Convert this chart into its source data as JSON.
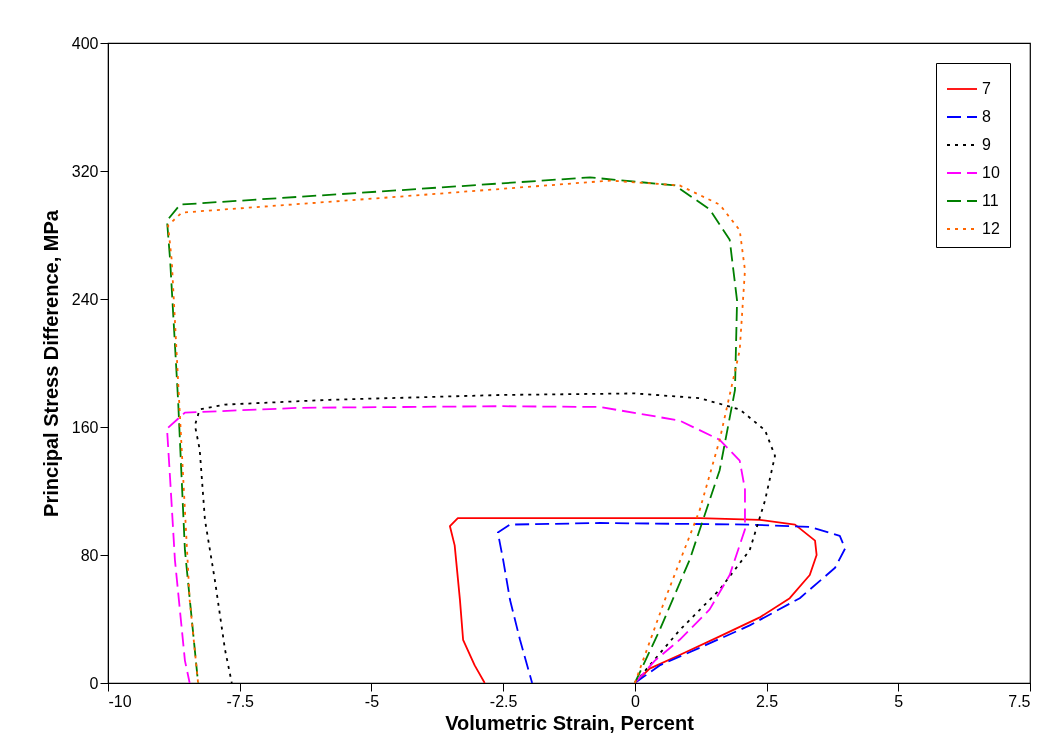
{
  "chart_data": {
    "type": "line",
    "xlabel": "Volumetric Strain, Percent",
    "ylabel": "Principal Stress Difference, MPa",
    "xlim": [
      -10,
      7.5
    ],
    "xticks": [
      -10,
      -7.5,
      -5,
      -2.5,
      0,
      2.5,
      5,
      7.5
    ],
    "ylim": [
      0,
      400
    ],
    "yticks": [
      0,
      80,
      160,
      240,
      320,
      400
    ],
    "grid": false,
    "legend": "top right",
    "marker": "none",
    "series": [
      {
        "name": "7",
        "color": "#ff0000",
        "line_style": "solid",
        "x": [
          0,
          0.28,
          0.85,
          1.6,
          2.37,
          2.94,
          3.32,
          3.45,
          3.42,
          3.04,
          2.37,
          1.23,
          -0.66,
          -3.36,
          -3.51,
          -3.42,
          -3.32,
          -3.26,
          -3.04,
          -2.85
        ],
        "values": [
          0,
          9,
          17.5,
          29,
          41,
          53,
          67.5,
          80,
          89,
          99,
          102,
          103,
          103,
          103,
          98,
          86,
          52,
          27,
          11,
          0
        ]
      },
      {
        "name": "8",
        "color": "#0000ff",
        "line_style": "dashed",
        "x": [
          0,
          0.47,
          1.23,
          2.18,
          3.13,
          3.8,
          3.99,
          3.89,
          3.32,
          2.18,
          -0.66,
          -2.37,
          -2.6,
          -2.5,
          -2.37,
          -2.18,
          -1.95
        ],
        "values": [
          0,
          11,
          22,
          36,
          53,
          72,
          84,
          92,
          97.5,
          99,
          100,
          99,
          94,
          77,
          52,
          27,
          0
        ]
      },
      {
        "name": "9",
        "color": "#000000",
        "line_style": "dotted",
        "x": [
          0,
          0.28,
          0.85,
          1.6,
          2.18,
          2.47,
          2.66,
          2.47,
          1.99,
          1.23,
          0,
          -2.56,
          -5.79,
          -7.78,
          -8.26,
          -8.35,
          -8.26,
          -8.16,
          -7.97,
          -7.78,
          -7.65
        ],
        "values": [
          0,
          11,
          33,
          58,
          83,
          114,
          142,
          158,
          171,
          178,
          181,
          180,
          177,
          174,
          171,
          161,
          146,
          102,
          64,
          21,
          0
        ]
      },
      {
        "name": "10",
        "color": "#ff00ff",
        "line_style": "dashed",
        "x": [
          0,
          0.38,
          0.85,
          1.42,
          1.8,
          2.09,
          2.09,
          1.99,
          1.61,
          0.85,
          -0.66,
          -2.56,
          -6.36,
          -8.54,
          -8.88,
          -8.82,
          -8.73,
          -8.54,
          -8.45
        ],
        "values": [
          0,
          14,
          27,
          46,
          67.5,
          96,
          121,
          139,
          152,
          164,
          172.5,
          173,
          172,
          169,
          159,
          127,
          77,
          14,
          0
        ]
      },
      {
        "name": "11",
        "color": "#007f00",
        "line_style": "dashed",
        "x": [
          0,
          0.47,
          1.04,
          1.61,
          1.9,
          1.94,
          1.8,
          1.42,
          0.76,
          -0.85,
          -4.46,
          -8.63,
          -8.88,
          -8.82,
          -8.67,
          -8.54,
          -8.29
        ],
        "values": [
          0,
          33,
          77,
          133,
          183,
          239,
          277,
          296,
          311,
          316,
          308,
          299,
          289,
          264,
          177,
          83,
          0
        ]
      },
      {
        "name": "12",
        "color": "#ff6600",
        "line_style": "dotted",
        "x": [
          0,
          0.57,
          1.23,
          1.61,
          1.99,
          2.09,
          1.99,
          1.61,
          0.85,
          -0.47,
          -4.46,
          -8.6,
          -8.86,
          -8.79,
          -8.63,
          -8.45,
          -8.29
        ],
        "values": [
          0,
          52,
          108,
          152,
          208,
          258,
          283,
          299,
          311,
          314,
          304,
          294,
          286,
          264,
          164,
          52,
          0
        ]
      }
    ]
  }
}
